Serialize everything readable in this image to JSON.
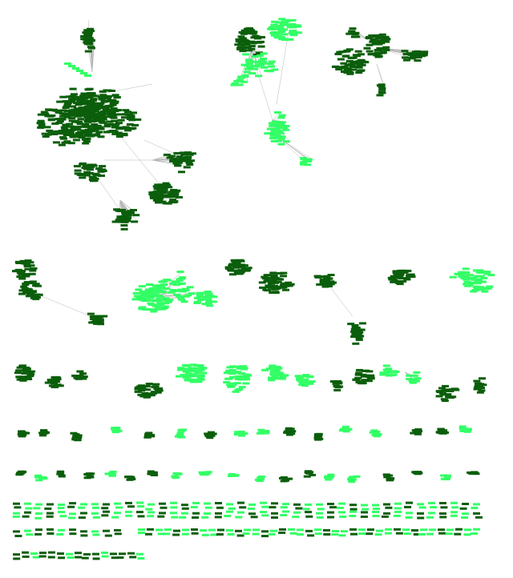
{
  "network": {
    "colors": {
      "dark_group": "#0b5e0b",
      "light_group": "#33ff66",
      "edge": "#b5b5b5"
    },
    "components": [
      {
        "id": "c1",
        "group": "dark",
        "nodes": 320
      },
      {
        "id": "c2",
        "group": "light",
        "nodes": 140
      },
      {
        "id": "c3",
        "group": "dark",
        "nodes": 150
      },
      {
        "id": "c4",
        "group": "dark",
        "nodes": 40
      },
      {
        "id": "c5",
        "group": "dark",
        "nodes": 30
      },
      {
        "id": "c6",
        "group": "light",
        "nodes": 80
      },
      {
        "id": "c7",
        "group": "dark",
        "nodes": 25
      },
      {
        "id": "c8",
        "group": "dark",
        "nodes": 40
      },
      {
        "id": "c9",
        "group": "dark",
        "nodes": 20
      },
      {
        "id": "c10",
        "group": "dark",
        "nodes": 35
      },
      {
        "id": "c11",
        "group": "light",
        "nodes": 35
      },
      {
        "id": "c12",
        "group": "dark",
        "nodes": 25
      }
    ]
  }
}
